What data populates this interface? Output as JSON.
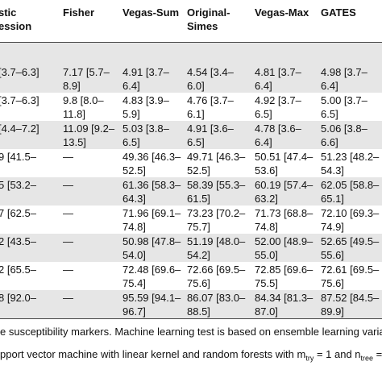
{
  "table": {
    "header": [
      [
        "stic",
        "ession"
      ],
      [
        "Fisher"
      ],
      [
        "Vegas-Sum"
      ],
      [
        "Original-",
        "Simes"
      ],
      [
        "Vegas-Max"
      ],
      [
        "GATES"
      ]
    ],
    "rows": [
      [
        [
          "[3.7–6.3]"
        ],
        [
          "7.17 [5.7–",
          "8.9]"
        ],
        [
          "4.91 [3.7–",
          "6.4]"
        ],
        [
          "4.54 [3.4–",
          "6.0]"
        ],
        [
          "4.81 [3.7–",
          "6.4]"
        ],
        [
          "4.98 [3.7–",
          "6.4]"
        ]
      ],
      [
        [
          "[3.7–6.3]"
        ],
        [
          "9.8 [8.0–",
          "11.8]"
        ],
        [
          "4.83 [3.9–",
          "5.9]"
        ],
        [
          "4.76 [3.7–",
          "6.1]"
        ],
        [
          "4.92 [3.7–",
          "6.5]"
        ],
        [
          "5.00 [3.7–",
          "6.5]"
        ]
      ],
      [
        [
          "[4.4–7.2]"
        ],
        [
          "11.09 [9.2–",
          "13.5]"
        ],
        [
          "5.03 [3.8–",
          "6.5]"
        ],
        [
          "4.91 [3.6–",
          "6.5]"
        ],
        [
          "4.78 [3.6–",
          "6.4]"
        ],
        [
          "5.06 [3.8–",
          "6.6]"
        ]
      ],
      [
        [
          "9 [41.5–"
        ],
        [
          "—"
        ],
        [
          "49.36 [46.3–",
          "52.5]"
        ],
        [
          "49.71 [46.3–",
          "52.5]"
        ],
        [
          "50.51 [47.4–",
          "53.6]"
        ],
        [
          "51.23 [48.2–",
          "54.3]"
        ]
      ],
      [
        [
          "5 [53.2–"
        ],
        [
          "—"
        ],
        [
          "61.36 [58.3–",
          "64.3]"
        ],
        [
          "58.39 [55.3–",
          "61.5]"
        ],
        [
          "60.19 [57.4–",
          "63.2]"
        ],
        [
          "62.05 [58.8–",
          "65.1]"
        ]
      ],
      [
        [
          "7 [62.5–"
        ],
        [
          "—"
        ],
        [
          "71.96 [69.1–",
          "74.8]"
        ],
        [
          "73.23 [70.2–",
          "75.7]"
        ],
        [
          "71.73 [68.8–",
          "74.8]"
        ],
        [
          "72.10 [69.3–",
          "74.9]"
        ]
      ],
      [
        [
          "2 [43.5–"
        ],
        [
          "—"
        ],
        [
          "50.98 [47.8–",
          "54.0]"
        ],
        [
          "51.19 [48.0–",
          "54.2]"
        ],
        [
          "52.00 [48.9–",
          "55.0]"
        ],
        [
          "52.65 [49.5–",
          "55.6]"
        ]
      ],
      [
        [
          "2 [65.5–"
        ],
        [
          "—"
        ],
        [
          "72.48 [69.6–",
          "75.4]"
        ],
        [
          "72.66 [69.5–",
          "75.6]"
        ],
        [
          "72.85 [69.6–",
          "75.5]"
        ],
        [
          "72.61 [69.5–",
          "75.6]"
        ]
      ],
      [
        [
          "8 [92.0–"
        ],
        [
          "—"
        ],
        [
          "95.59 [94.1–",
          "96.7]"
        ],
        [
          "86.07 [83.0–",
          "88.5]"
        ],
        [
          "84.34 [81.3–",
          "87.0]"
        ],
        [
          "87.52 [84.5–",
          "89.9]"
        ]
      ]
    ],
    "footnote": {
      "line1": "e susceptibility markers. Machine learning test is based on ensemble learning variati",
      "line2": [
        "pport vector machine with linear kernel and random forests with m",
        "try",
        " = 1 and n",
        "tree",
        " ="
      ]
    }
  }
}
